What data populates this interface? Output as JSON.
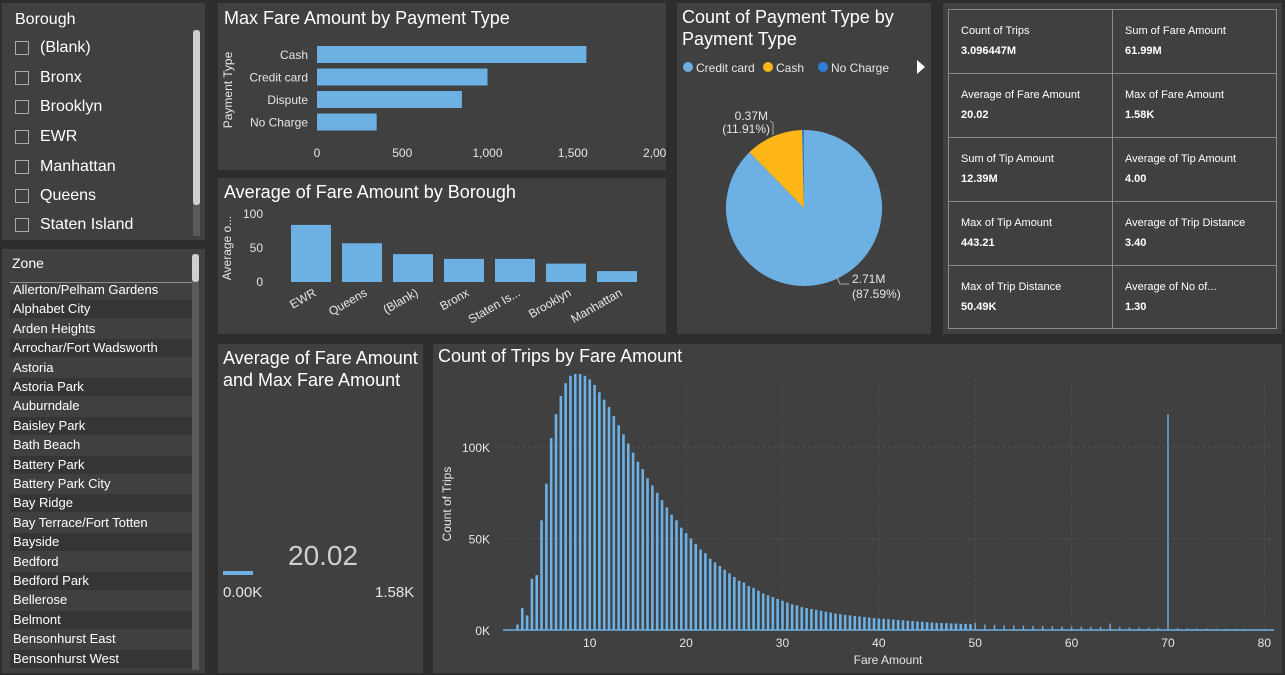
{
  "borough_slicer": {
    "title": "Borough",
    "items": [
      "(Blank)",
      "Bronx",
      "Brooklyn",
      "EWR",
      "Manhattan",
      "Queens",
      "Staten Island"
    ]
  },
  "zone_slicer": {
    "title": "Zone",
    "items": [
      "Allerton/Pelham Gardens",
      "Alphabet City",
      "Arden Heights",
      "Arrochar/Fort Wadsworth",
      "Astoria",
      "Astoria Park",
      "Auburndale",
      "Baisley Park",
      "Bath Beach",
      "Battery Park",
      "Battery Park City",
      "Bay Ridge",
      "Bay Terrace/Fort Totten",
      "Bayside",
      "Bedford",
      "Bedford Park",
      "Bellerose",
      "Belmont",
      "Bensonhurst East",
      "Bensonhurst West"
    ]
  },
  "kpis": [
    {
      "label": "Count of Trips",
      "value": "3.096447M"
    },
    {
      "label": "Sum of Fare Amount",
      "value": "61.99M"
    },
    {
      "label": "Average of Fare Amount",
      "value": "20.02"
    },
    {
      "label": "Max of Fare Amount",
      "value": "1.58K"
    },
    {
      "label": "Sum of Tip Amount",
      "value": "12.39M"
    },
    {
      "label": "Average of Tip Amount",
      "value": "4.00"
    },
    {
      "label": "Max of Tip Amount",
      "value": "443.21"
    },
    {
      "label": "Average of Trip Distance",
      "value": "3.40"
    },
    {
      "label": "Max of Trip Distance",
      "value": "50.49K"
    },
    {
      "label": "Average of No of...",
      "value": "1.30"
    }
  ],
  "gauge": {
    "title": "Average of Fare Amount and Max Fare Amount",
    "value_label": "20.02",
    "min_label": "0.00K",
    "max_label": "1.58K",
    "value": 20.02,
    "max": 1580
  },
  "colors": {
    "bar": "#6cb0e4",
    "credit_card": "#6cb0e4",
    "cash": "#ffb718",
    "no_charge": "#2f7ed8"
  },
  "chart_data": [
    {
      "type": "bar",
      "orientation": "horizontal",
      "title": "Max Fare Amount by Payment Type",
      "ylabel": "Payment Type",
      "categories": [
        "Cash",
        "Credit card",
        "Dispute",
        "No Charge"
      ],
      "values": [
        1580,
        1000,
        850,
        350
      ],
      "xlim": [
        0,
        2000
      ],
      "x_ticks": [
        "0",
        "500",
        "1,000",
        "1,500",
        "2,000"
      ]
    },
    {
      "type": "bar",
      "title": "Average of Fare Amount by Borough",
      "ylabel": "Average o...",
      "categories": [
        "EWR",
        "Queens",
        "(Blank)",
        "Bronx",
        "Staten Is...",
        "Brooklyn",
        "Manhattan"
      ],
      "values": [
        84,
        57,
        41,
        34,
        34,
        27,
        16
      ],
      "ylim": [
        0,
        100
      ],
      "y_ticks": [
        "0",
        "50",
        "100"
      ]
    },
    {
      "type": "pie",
      "title": "Count of Payment Type by Payment Type",
      "legend": [
        "Credit card",
        "Cash",
        "No Charge"
      ],
      "legend_position": "top",
      "values": [
        2.71,
        0.37,
        0.0115
      ],
      "data_labels": [
        {
          "value": "2.71M",
          "pct": "(87.59%)"
        },
        {
          "value": "0.37M",
          "pct": "(11.91%)"
        }
      ]
    },
    {
      "type": "bar",
      "title": "Count of Trips by Fare Amount",
      "xlabel": "Fare Amount",
      "ylabel": "Count of Trips",
      "xlim": [
        1,
        81
      ],
      "ylim": [
        0,
        140000
      ],
      "x_ticks": [
        "10",
        "20",
        "30",
        "40",
        "50",
        "60",
        "70",
        "80"
      ],
      "y_ticks": [
        "0K",
        "50K",
        "100K"
      ],
      "x": [
        2.5,
        3,
        3.5,
        4,
        4.5,
        5,
        5.5,
        6,
        6.5,
        7,
        7.5,
        8,
        8.5,
        9,
        9.5,
        10,
        10.5,
        11,
        11.5,
        12,
        12.5,
        13,
        13.5,
        14,
        14.5,
        15,
        15.5,
        16,
        16.5,
        17,
        17.5,
        18,
        18.5,
        19,
        19.5,
        20,
        20.5,
        21,
        21.5,
        22,
        22.5,
        23,
        23.5,
        24,
        24.5,
        25,
        25.5,
        26,
        26.5,
        27,
        27.5,
        28,
        28.5,
        29,
        29.5,
        30,
        30.5,
        31,
        31.5,
        32,
        32.5,
        33,
        33.5,
        34,
        34.5,
        35,
        35.5,
        36,
        36.5,
        37,
        37.5,
        38,
        38.5,
        39,
        39.5,
        40,
        40.5,
        41,
        41.5,
        42,
        42.5,
        43,
        43.5,
        44,
        44.5,
        45,
        45.5,
        46,
        46.5,
        47,
        47.5,
        48,
        48.5,
        49,
        49.5,
        50,
        51,
        52,
        53,
        54,
        55,
        56,
        57,
        58,
        59,
        60,
        61,
        62,
        63,
        64,
        65,
        66,
        67,
        68,
        69,
        70,
        71,
        72,
        73,
        74,
        75,
        76,
        77,
        78,
        79,
        80
      ],
      "values": [
        3000,
        12000,
        8000,
        28000,
        30000,
        60000,
        80000,
        105000,
        118000,
        128000,
        135000,
        139000,
        140000,
        140000,
        139000,
        137000,
        134000,
        130000,
        126000,
        122000,
        117000,
        112000,
        107000,
        102000,
        97000,
        92000,
        88000,
        83000,
        79000,
        75000,
        71000,
        67000,
        63000,
        60000,
        56000,
        53000,
        50000,
        47000,
        44000,
        42000,
        39000,
        37000,
        35000,
        33000,
        31000,
        29000,
        27000,
        26000,
        24000,
        23000,
        21500,
        20000,
        19000,
        18000,
        17000,
        16000,
        15000,
        14000,
        13500,
        12500,
        12000,
        11500,
        11000,
        10500,
        10000,
        9500,
        9000,
        8700,
        8300,
        8000,
        7700,
        7400,
        7100,
        6800,
        6500,
        6300,
        6100,
        5900,
        5700,
        5500,
        5300,
        5100,
        4900,
        4700,
        4500,
        4300,
        4100,
        3900,
        3800,
        3700,
        3600,
        3500,
        3400,
        3300,
        3200,
        4000,
        3000,
        2800,
        2600,
        2500,
        2400,
        2300,
        2200,
        2100,
        2000,
        1900,
        1800,
        1700,
        1600,
        3500,
        1500,
        1400,
        1300,
        1200,
        1100,
        118000,
        1000,
        900,
        850,
        800,
        750,
        700,
        650,
        600,
        550,
        500
      ]
    }
  ]
}
